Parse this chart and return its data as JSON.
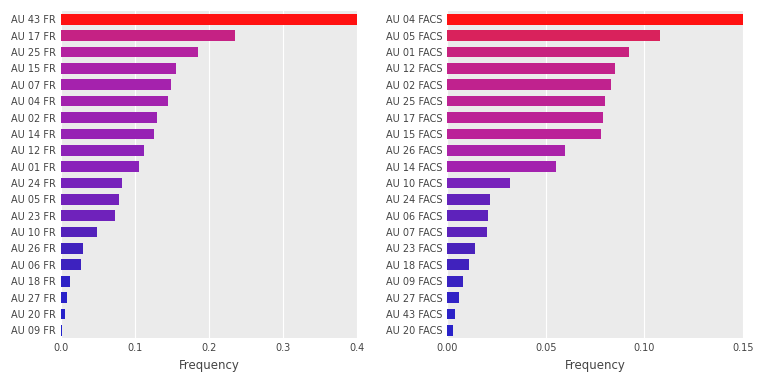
{
  "left": {
    "labels": [
      "AU 43 FR",
      "AU 17 FR",
      "AU 25 FR",
      "AU 15 FR",
      "AU 07 FR",
      "AU 04 FR",
      "AU 02 FR",
      "AU 14 FR",
      "AU 12 FR",
      "AU 01 FR",
      "AU 24 FR",
      "AU 05 FR",
      "AU 23 FR",
      "AU 10 FR",
      "AU 26 FR",
      "AU 06 FR",
      "AU 18 FR",
      "AU 27 FR",
      "AU 20 FR",
      "AU 09 FR"
    ],
    "values": [
      0.41,
      0.235,
      0.185,
      0.155,
      0.148,
      0.145,
      0.13,
      0.125,
      0.112,
      0.106,
      0.082,
      0.078,
      0.073,
      0.048,
      0.03,
      0.027,
      0.012,
      0.008,
      0.005,
      0.001
    ],
    "xlim": [
      0,
      0.4
    ],
    "xticks": [
      0.0,
      0.1,
      0.2,
      0.3,
      0.4
    ],
    "xlabel": "Frequency"
  },
  "right": {
    "labels": [
      "AU 04 FACS",
      "AU 05 FACS",
      "AU 01 FACS",
      "AU 12 FACS",
      "AU 02 FACS",
      "AU 25 FACS",
      "AU 17 FACS",
      "AU 15 FACS",
      "AU 26 FACS",
      "AU 14 FACS",
      "AU 10 FACS",
      "AU 24 FACS",
      "AU 06 FACS",
      "AU 07 FACS",
      "AU 23 FACS",
      "AU 18 FACS",
      "AU 09 FACS",
      "AU 27 FACS",
      "AU 43 FACS",
      "AU 20 FACS"
    ],
    "values": [
      0.155,
      0.108,
      0.092,
      0.085,
      0.083,
      0.08,
      0.079,
      0.078,
      0.06,
      0.055,
      0.032,
      0.022,
      0.021,
      0.02,
      0.014,
      0.011,
      0.008,
      0.006,
      0.004,
      0.003
    ],
    "xlim": [
      0,
      0.15
    ],
    "xticks": [
      0.0,
      0.05,
      0.1,
      0.15
    ],
    "xlabel": "Frequency"
  },
  "colormap": [
    [
      0.0,
      "#2222cc"
    ],
    [
      0.08,
      "#4422bb"
    ],
    [
      0.15,
      "#6622bb"
    ],
    [
      0.25,
      "#8822bb"
    ],
    [
      0.38,
      "#aa22aa"
    ],
    [
      0.5,
      "#bb2299"
    ],
    [
      0.62,
      "#cc2277"
    ],
    [
      0.72,
      "#dd2255"
    ],
    [
      0.82,
      "#ee2233"
    ],
    [
      1.0,
      "#ff1111"
    ]
  ],
  "bg_color": "#ebebeb",
  "grid_color": "#ffffff",
  "fig_bg": "#ffffff",
  "label_fontsize": 7.0,
  "tick_fontsize": 7.0,
  "axis_label_fontsize": 8.5,
  "tick_color": "#444444",
  "bar_height": 0.65
}
